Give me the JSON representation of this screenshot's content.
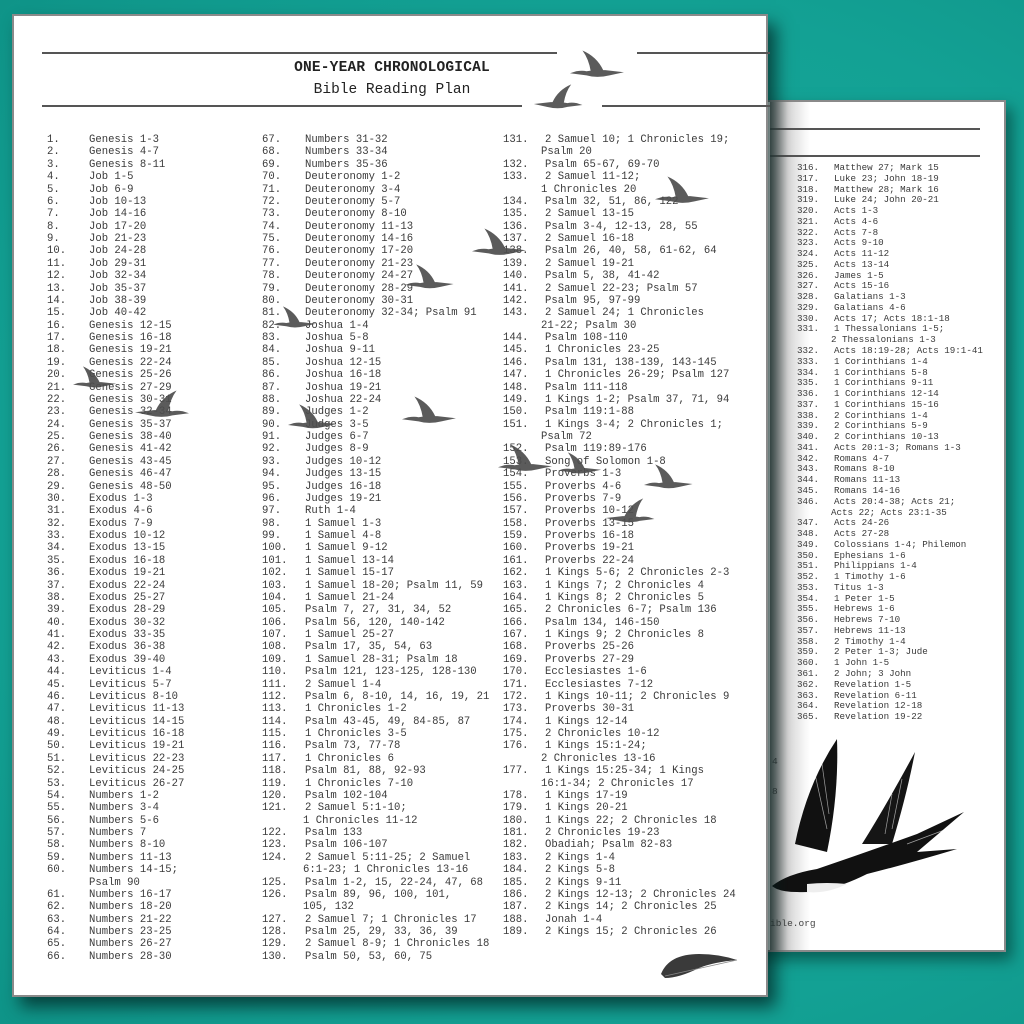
{
  "colors": {
    "background": "#15a79a",
    "page": "#ffffff",
    "text": "#3a3a3a",
    "bird": "#4d4d4d"
  },
  "header": {
    "title_line1": "ONE-YEAR CHRONOLOGICAL",
    "title_line2": "Bible Reading Plan"
  },
  "columns": [
    [
      [
        "1.",
        "Genesis 1-3"
      ],
      [
        "2.",
        "Genesis 4-7"
      ],
      [
        "3.",
        "Genesis 8-11"
      ],
      [
        "4.",
        "Job 1-5"
      ],
      [
        "5.",
        "Job 6-9"
      ],
      [
        "6.",
        "Job 10-13"
      ],
      [
        "7.",
        "Job 14-16"
      ],
      [
        "8.",
        "Job 17-20"
      ],
      [
        "9.",
        "Job 21-23"
      ],
      [
        "10.",
        "Job 24-28"
      ],
      [
        "11.",
        "Job 29-31"
      ],
      [
        "12.",
        "Job 32-34"
      ],
      [
        "13.",
        "Job 35-37"
      ],
      [
        "14.",
        "Job 38-39"
      ],
      [
        "15.",
        "Job 40-42"
      ],
      [
        "16.",
        "Genesis 12-15"
      ],
      [
        "17.",
        "Genesis 16-18"
      ],
      [
        "18.",
        "Genesis 19-21"
      ],
      [
        "19.",
        "Genesis 22-24"
      ],
      [
        "20.",
        "Genesis 25-26"
      ],
      [
        "21.",
        "Genesis 27-29"
      ],
      [
        "22.",
        "Genesis 30-31"
      ],
      [
        "23.",
        "Genesis 32-34"
      ],
      [
        "24.",
        "Genesis 35-37"
      ],
      [
        "25.",
        "Genesis 38-40"
      ],
      [
        "26.",
        "Genesis 41-42"
      ],
      [
        "27.",
        "Genesis 43-45"
      ],
      [
        "28.",
        "Genesis 46-47"
      ],
      [
        "29.",
        "Genesis 48-50"
      ],
      [
        "30.",
        "Exodus 1-3"
      ],
      [
        "31.",
        "Exodus 4-6"
      ],
      [
        "32.",
        "Exodus 7-9"
      ],
      [
        "33.",
        "Exodus 10-12"
      ],
      [
        "34.",
        "Exodus 13-15"
      ],
      [
        "35.",
        "Exodus 16-18"
      ],
      [
        "36.",
        "Exodus 19-21"
      ],
      [
        "37.",
        "Exodus 22-24"
      ],
      [
        "38.",
        "Exodus 25-27"
      ],
      [
        "39.",
        "Exodus 28-29"
      ],
      [
        "40.",
        "Exodus 30-32"
      ],
      [
        "41.",
        "Exodus 33-35"
      ],
      [
        "42.",
        "Exodus 36-38"
      ],
      [
        "43.",
        "Exodus 39-40"
      ],
      [
        "44.",
        "Leviticus 1-4"
      ],
      [
        "45.",
        "Leviticus 5-7"
      ],
      [
        "46.",
        "Leviticus 8-10"
      ],
      [
        "47.",
        "Leviticus 11-13"
      ],
      [
        "48.",
        "Leviticus 14-15"
      ],
      [
        "49.",
        "Leviticus 16-18"
      ],
      [
        "50.",
        "Leviticus 19-21"
      ],
      [
        "51.",
        "Leviticus 22-23"
      ],
      [
        "52.",
        "Leviticus 24-25"
      ],
      [
        "53.",
        "Leviticus 26-27"
      ],
      [
        "54.",
        "Numbers 1-2"
      ],
      [
        "55.",
        "Numbers 3-4"
      ],
      [
        "56.",
        "Numbers 5-6"
      ],
      [
        "57.",
        "Numbers 7"
      ],
      [
        "58.",
        "Numbers 8-10"
      ],
      [
        "59.",
        "Numbers 11-13"
      ],
      [
        "60.",
        "Numbers 14-15;",
        "Psalm 90"
      ],
      [
        "61.",
        "Numbers 16-17"
      ],
      [
        "62.",
        "Numbers 18-20"
      ],
      [
        "63.",
        "Numbers 21-22"
      ],
      [
        "64.",
        "Numbers 23-25"
      ],
      [
        "65.",
        "Numbers 26-27"
      ],
      [
        "66.",
        "Numbers 28-30"
      ]
    ],
    [
      [
        "67.",
        "Numbers 31-32"
      ],
      [
        "68.",
        "Numbers 33-34"
      ],
      [
        "69.",
        "Numbers 35-36"
      ],
      [
        "70.",
        "Deuteronomy 1-2"
      ],
      [
        "71.",
        "Deuteronomy 3-4"
      ],
      [
        "72.",
        "Deuteronomy 5-7"
      ],
      [
        "73.",
        "Deuteronomy 8-10"
      ],
      [
        "74.",
        "Deuteronomy 11-13"
      ],
      [
        "75.",
        "Deuteronomy 14-16"
      ],
      [
        "76.",
        "Deuteronomy 17-20"
      ],
      [
        "77.",
        "Deuteronomy 21-23"
      ],
      [
        "78.",
        "Deuteronomy 24-27"
      ],
      [
        "79.",
        "Deuteronomy 28-29"
      ],
      [
        "80.",
        "Deuteronomy 30-31"
      ],
      [
        "81.",
        "Deuteronomy 32-34; Psalm 91"
      ],
      [
        "82.",
        "Joshua 1-4"
      ],
      [
        "83.",
        "Joshua 5-8"
      ],
      [
        "84.",
        "Joshua 9-11"
      ],
      [
        "85.",
        "Joshua 12-15"
      ],
      [
        "86.",
        "Joshua 16-18"
      ],
      [
        "87.",
        "Joshua 19-21"
      ],
      [
        "88.",
        "Joshua 22-24"
      ],
      [
        "89.",
        "Judges 1-2"
      ],
      [
        "90.",
        "Judges 3-5"
      ],
      [
        "91.",
        "Judges 6-7"
      ],
      [
        "92.",
        "Judges 8-9"
      ],
      [
        "93.",
        "Judges 10-12"
      ],
      [
        "94.",
        "Judges 13-15"
      ],
      [
        "95.",
        "Judges 16-18"
      ],
      [
        "96.",
        "Judges 19-21"
      ],
      [
        "97.",
        "Ruth 1-4"
      ],
      [
        "98.",
        "1 Samuel 1-3"
      ],
      [
        "99.",
        "1 Samuel 4-8"
      ],
      [
        "100.",
        "1 Samuel 9-12"
      ],
      [
        "101.",
        "1 Samuel 13-14"
      ],
      [
        "102.",
        "1 Samuel 15-17"
      ],
      [
        "103.",
        "1 Samuel 18-20; Psalm 11, 59"
      ],
      [
        "104.",
        "1 Samuel 21-24"
      ],
      [
        "105.",
        "Psalm 7, 27, 31, 34, 52"
      ],
      [
        "106.",
        "Psalm 56, 120, 140-142"
      ],
      [
        "107.",
        "1 Samuel 25-27"
      ],
      [
        "108.",
        "Psalm 17, 35, 54, 63"
      ],
      [
        "109.",
        "1 Samuel 28-31; Psalm 18"
      ],
      [
        "110.",
        "Psalm 121, 123-125, 128-130"
      ],
      [
        "111.",
        "2 Samuel 1-4"
      ],
      [
        "112.",
        "Psalm 6, 8-10, 14, 16, 19, 21"
      ],
      [
        "113.",
        "1 Chronicles 1-2"
      ],
      [
        "114.",
        "Psalm 43-45, 49, 84-85, 87"
      ],
      [
        "115.",
        "1 Chronicles 3-5"
      ],
      [
        "116.",
        "Psalm 73, 77-78"
      ],
      [
        "117.",
        "1 Chronicles 6"
      ],
      [
        "118.",
        "Psalm 81, 88, 92-93"
      ],
      [
        "119.",
        "1 Chronicles 7-10"
      ],
      [
        "120.",
        "Psalm 102-104"
      ],
      [
        "121.",
        "2 Samuel 5:1-10;",
        "1 Chronicles 11-12"
      ],
      [
        "122.",
        "Psalm 133"
      ],
      [
        "123.",
        "Psalm 106-107"
      ],
      [
        "124.",
        "2 Samuel 5:11-25; 2 Samuel",
        "6:1-23; 1 Chronicles 13-16"
      ],
      [
        "125.",
        "Psalm 1-2, 15, 22-24, 47, 68"
      ],
      [
        "126.",
        "Psalm 89, 96, 100, 101,",
        "105, 132"
      ],
      [
        "127.",
        "2 Samuel 7; 1 Chronicles 17"
      ],
      [
        "128.",
        "Psalm 25, 29, 33, 36, 39"
      ],
      [
        "129.",
        "2 Samuel 8-9; 1 Chronicles 18"
      ],
      [
        "130.",
        "Psalm 50, 53, 60, 75"
      ]
    ],
    [
      [
        "131.",
        "2 Samuel 10; 1 Chronicles 19;",
        "Psalm 20"
      ],
      [
        "132.",
        "Psalm 65-67, 69-70"
      ],
      [
        "133.",
        "2 Samuel 11-12;",
        "1 Chronicles 20"
      ],
      [
        "134.",
        "Psalm 32, 51, 86, 122"
      ],
      [
        "135.",
        "2 Samuel 13-15"
      ],
      [
        "136.",
        "Psalm 3-4, 12-13, 28, 55"
      ],
      [
        "137.",
        "2 Samuel 16-18"
      ],
      [
        "138.",
        "Psalm 26, 40, 58, 61-62, 64"
      ],
      [
        "139.",
        "2 Samuel 19-21"
      ],
      [
        "140.",
        "Psalm 5, 38, 41-42"
      ],
      [
        "141.",
        "2 Samuel 22-23; Psalm 57"
      ],
      [
        "142.",
        "Psalm 95, 97-99"
      ],
      [
        "143.",
        "2 Samuel 24; 1 Chronicles",
        "21-22; Psalm 30"
      ],
      [
        "144.",
        "Psalm 108-110"
      ],
      [
        "145.",
        "1 Chronicles 23-25"
      ],
      [
        "146.",
        "Psalm 131, 138-139, 143-145"
      ],
      [
        "147.",
        "1 Chronicles 26-29; Psalm 127"
      ],
      [
        "148.",
        "Psalm 111-118"
      ],
      [
        "149.",
        "1 Kings 1-2; Psalm 37, 71, 94"
      ],
      [
        "150.",
        "Psalm 119:1-88"
      ],
      [
        "151.",
        "1 Kings 3-4; 2 Chronicles 1;",
        "Psalm 72"
      ],
      [
        "152.",
        "Psalm 119:89-176"
      ],
      [
        "153.",
        "Song of Solomon 1-8"
      ],
      [
        "154.",
        "Proverbs 1-3"
      ],
      [
        "155.",
        "Proverbs 4-6"
      ],
      [
        "156.",
        "Proverbs 7-9"
      ],
      [
        "157.",
        "Proverbs 10-12"
      ],
      [
        "158.",
        "Proverbs 13-15"
      ],
      [
        "159.",
        "Proverbs 16-18"
      ],
      [
        "160.",
        "Proverbs 19-21"
      ],
      [
        "161.",
        "Proverbs 22-24"
      ],
      [
        "162.",
        "1 Kings 5-6; 2 Chronicles 2-3"
      ],
      [
        "163.",
        "1 Kings 7; 2 Chronicles 4"
      ],
      [
        "164.",
        "1 Kings 8; 2 Chronicles 5"
      ],
      [
        "165.",
        "2 Chronicles 6-7; Psalm 136"
      ],
      [
        "166.",
        "Psalm 134, 146-150"
      ],
      [
        "167.",
        "1 Kings 9; 2 Chronicles 8"
      ],
      [
        "168.",
        "Proverbs 25-26"
      ],
      [
        "169.",
        "Proverbs 27-29"
      ],
      [
        "170.",
        "Ecclesiastes 1-6"
      ],
      [
        "171.",
        "Ecclesiastes 7-12"
      ],
      [
        "172.",
        "1 Kings 10-11; 2 Chronicles 9"
      ],
      [
        "173.",
        "Proverbs 30-31"
      ],
      [
        "174.",
        "1 Kings 12-14"
      ],
      [
        "175.",
        "2 Chronicles 10-12"
      ],
      [
        "176.",
        "1 Kings 15:1-24;",
        "2 Chronicles 13-16"
      ],
      [
        "177.",
        "1 Kings 15:25-34; 1 Kings",
        "16:1-34; 2 Chronicles 17"
      ],
      [
        "178.",
        "1 Kings 17-19"
      ],
      [
        "179.",
        "1 Kings 20-21"
      ],
      [
        "180.",
        "1 Kings 22; 2 Chronicles 18"
      ],
      [
        "181.",
        "2 Chronicles 19-23"
      ],
      [
        "182.",
        "Obadiah; Psalm 82-83"
      ],
      [
        "183.",
        "2 Kings 1-4"
      ],
      [
        "184.",
        "2 Kings 5-8"
      ],
      [
        "185.",
        "2 Kings 9-11"
      ],
      [
        "186.",
        "2 Kings 12-13; 2 Chronicles 24"
      ],
      [
        "187.",
        "2 Kings 14; 2 Chronicles 25"
      ],
      [
        "188.",
        "Jonah 1-4"
      ],
      [
        "189.",
        "2 Kings 15; 2 Chronicles 26"
      ]
    ]
  ],
  "back_page": {
    "items": [
      [
        "316.",
        "Matthew 27; Mark 15"
      ],
      [
        "317.",
        "Luke 23; John 18-19"
      ],
      [
        "318.",
        "Matthew 28; Mark 16"
      ],
      [
        "319.",
        "Luke 24; John 20-21"
      ],
      [
        "320.",
        "Acts 1-3"
      ],
      [
        "321.",
        "Acts 4-6"
      ],
      [
        "322.",
        "Acts 7-8"
      ],
      [
        "323.",
        "Acts 9-10"
      ],
      [
        "324.",
        "Acts 11-12"
      ],
      [
        "325.",
        "Acts 13-14"
      ],
      [
        "326.",
        "James 1-5"
      ],
      [
        "327.",
        "Acts 15-16"
      ],
      [
        "328.",
        "Galatians 1-3"
      ],
      [
        "329.",
        "Galatians 4-6"
      ],
      [
        "330.",
        "Acts 17; Acts 18:1-18"
      ],
      [
        "331.",
        "1 Thessalonians 1-5;",
        "2 Thessalonians 1-3"
      ],
      [
        "332.",
        "Acts 18:19-28; Acts 19:1-41"
      ],
      [
        "333.",
        "1 Corinthians 1-4"
      ],
      [
        "334.",
        "1 Corinthians 5-8"
      ],
      [
        "335.",
        "1 Corinthians 9-11"
      ],
      [
        "336.",
        "1 Corinthians 12-14"
      ],
      [
        "337.",
        "1 Corinthians 15-16"
      ],
      [
        "338.",
        "2 Corinthians 1-4"
      ],
      [
        "339.",
        "2 Corinthians 5-9"
      ],
      [
        "340.",
        "2 Corinthians 10-13"
      ],
      [
        "341.",
        "Acts 20:1-3; Romans 1-3"
      ],
      [
        "342.",
        "Romans 4-7"
      ],
      [
        "343.",
        "Romans 8-10"
      ],
      [
        "344.",
        "Romans 11-13"
      ],
      [
        "345.",
        "Romans 14-16"
      ],
      [
        "346.",
        "Acts 20:4-38; Acts 21;",
        "Acts 22; Acts 23:1-35"
      ],
      [
        "347.",
        "Acts 24-26"
      ],
      [
        "348.",
        "Acts 27-28"
      ],
      [
        "349.",
        "Colossians 1-4; Philemon"
      ],
      [
        "350.",
        "Ephesians 1-6"
      ],
      [
        "351.",
        "Philippians 1-4"
      ],
      [
        "352.",
        "1 Timothy 1-6"
      ],
      [
        "353.",
        "Titus 1-3"
      ],
      [
        "354.",
        "1 Peter 1-5"
      ],
      [
        "355.",
        "Hebrews 1-6"
      ],
      [
        "356.",
        "Hebrews 7-10"
      ],
      [
        "357.",
        "Hebrews 11-13"
      ],
      [
        "358.",
        "2 Timothy 1-4"
      ],
      [
        "359.",
        "2 Peter 1-3; Jude"
      ],
      [
        "360.",
        "1 John 1-5"
      ],
      [
        "361.",
        "2 John; 3 John"
      ],
      [
        "362.",
        "Revelation 1-5"
      ],
      [
        "363.",
        "Revelation 6-11"
      ],
      [
        "364.",
        "Revelation 12-18"
      ],
      [
        "365.",
        "Revelation 19-22"
      ]
    ],
    "stray_digits": [
      "4",
      "8"
    ],
    "footer_fragment": "ible.org"
  },
  "icons": {
    "birds": "flying-goose-silhouette",
    "swallow": "swallow-illustration",
    "feather": "feather-illustration"
  }
}
